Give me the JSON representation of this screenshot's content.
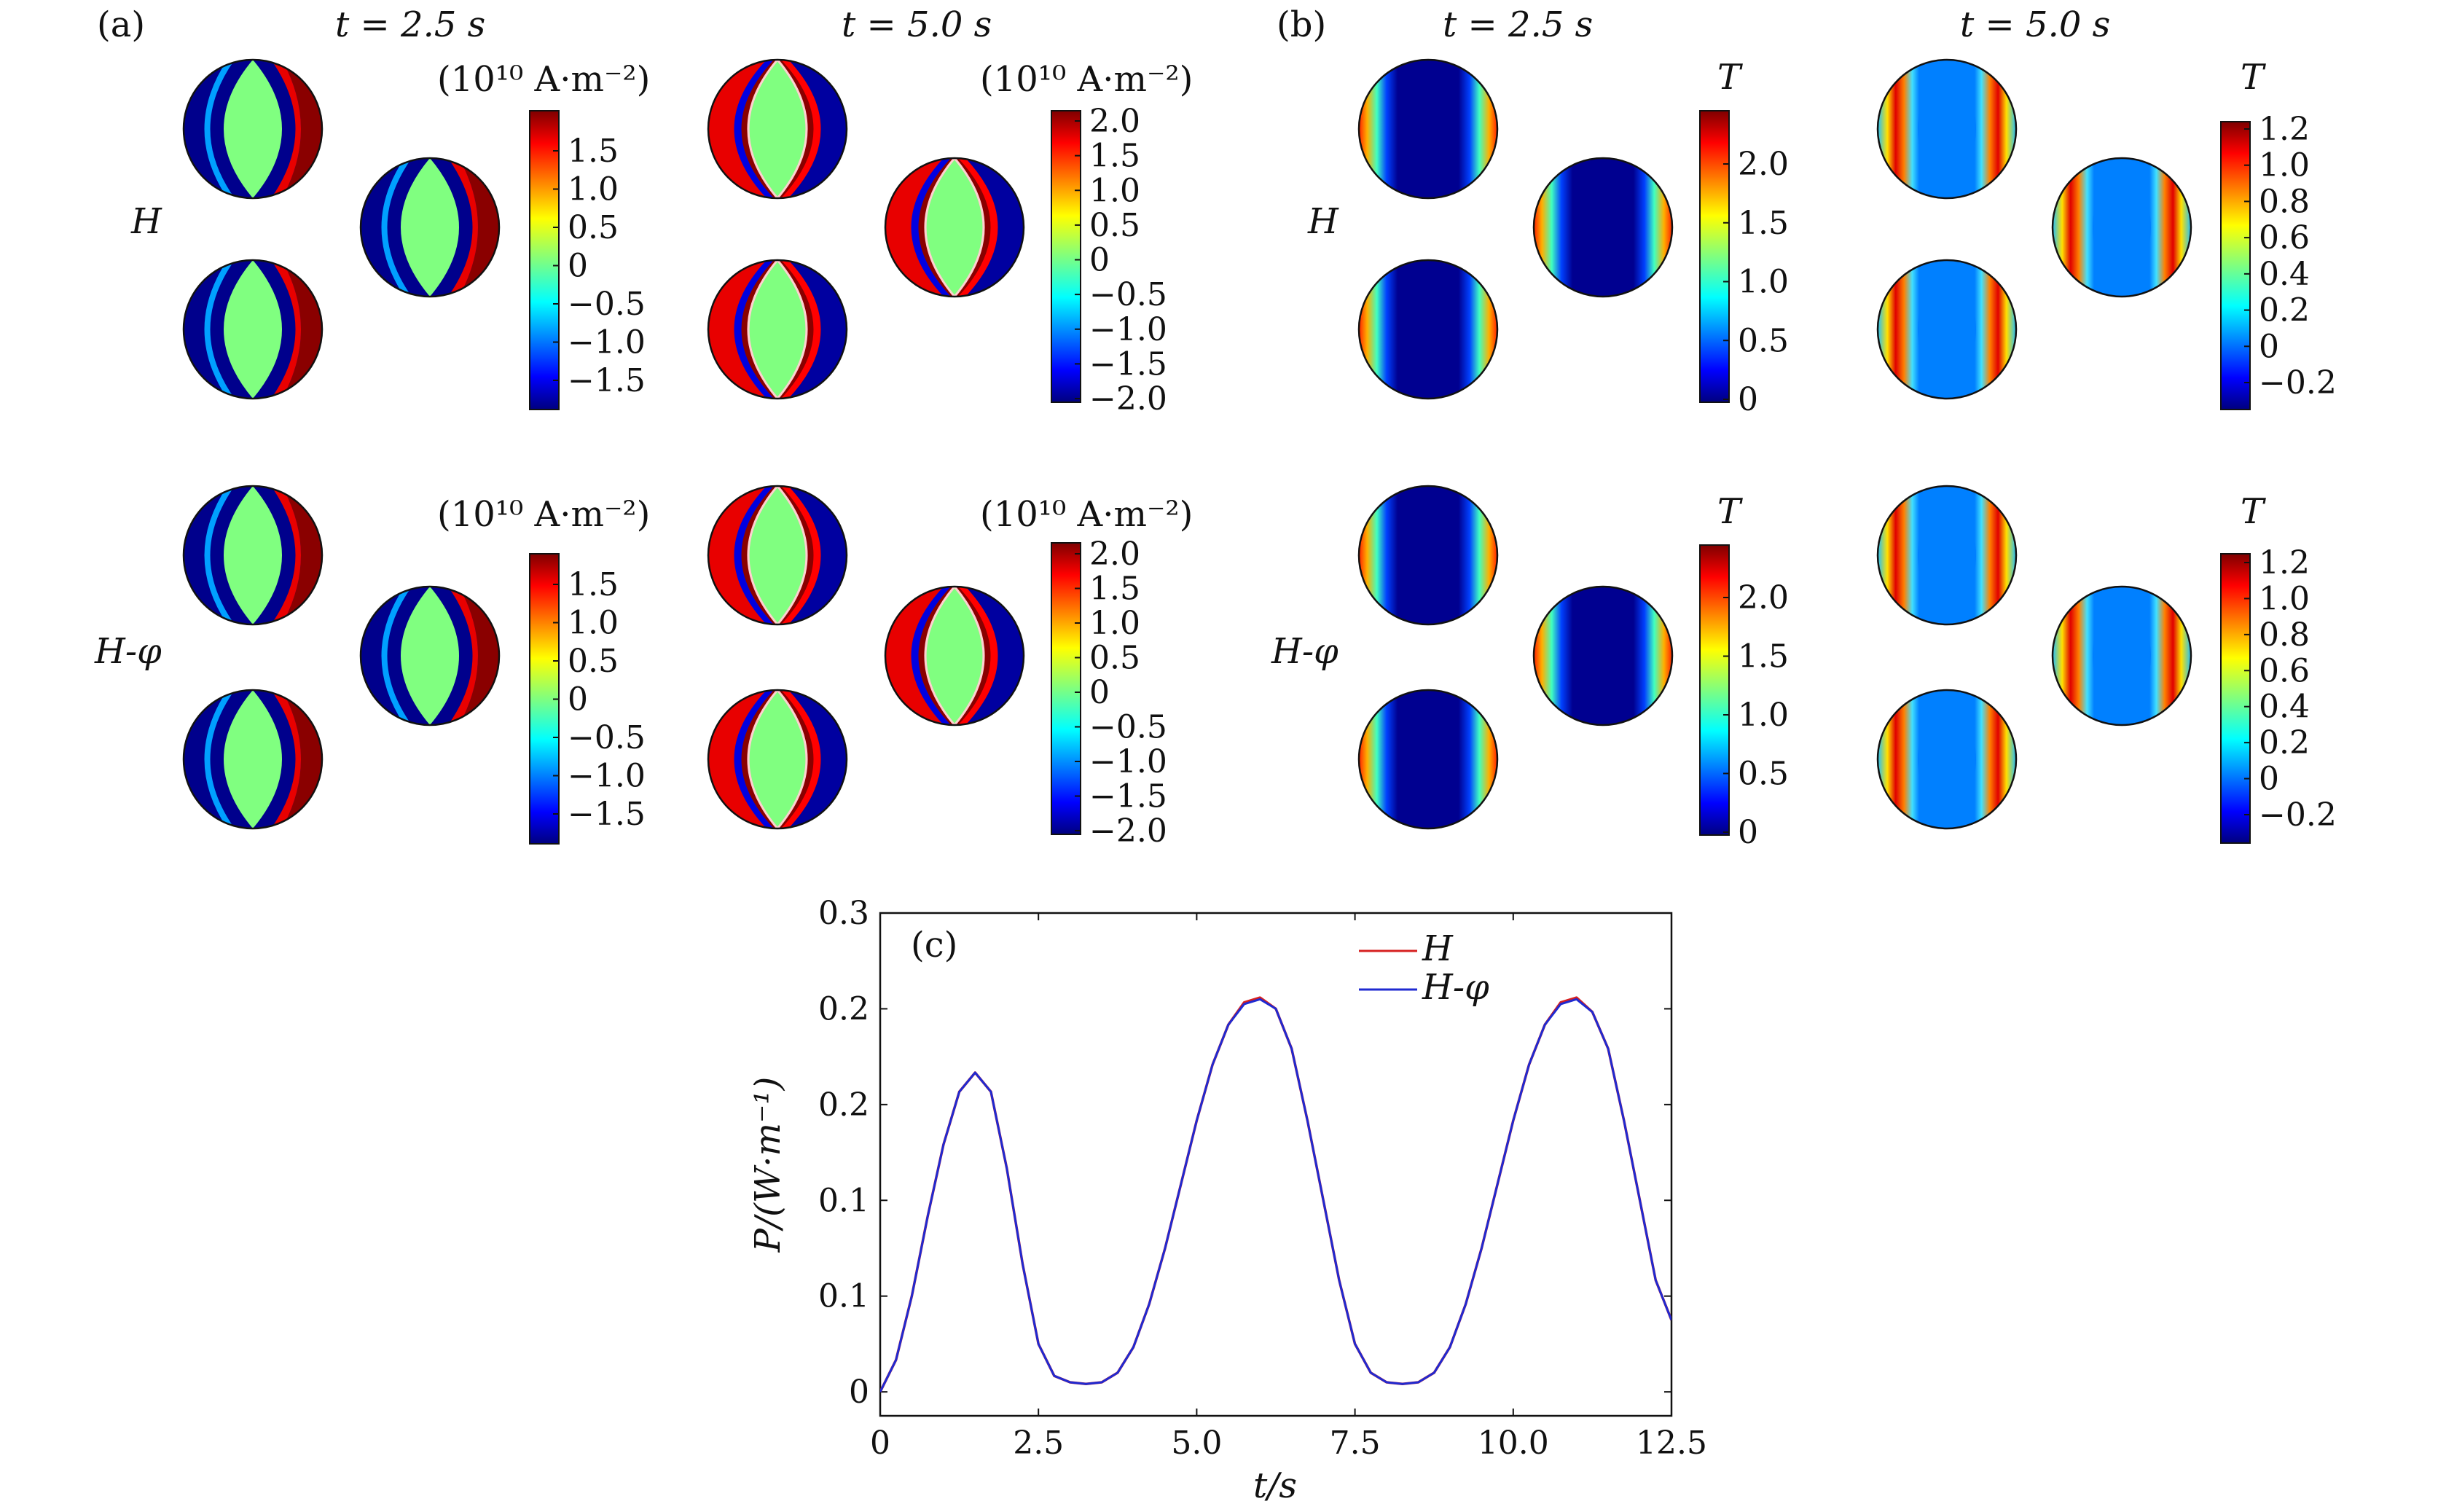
{
  "panels": {
    "a": {
      "label": "(a)",
      "times": [
        "t = 2.5 s",
        "t = 5.0 s"
      ],
      "rows": [
        "H",
        "H-φ"
      ],
      "unit": "(10¹⁰ A·m⁻²)",
      "cbar_2_5": [
        "1.5",
        "1.0",
        "0.5",
        "0",
        "−0.5",
        "−1.0",
        "−1.5"
      ],
      "cbar_5_0": [
        "2.0",
        "1.5",
        "1.0",
        "0.5",
        "0",
        "−0.5",
        "−1.0",
        "−1.5",
        "−2.0"
      ]
    },
    "b": {
      "label": "(b)",
      "times": [
        "t = 2.5 s",
        "t = 5.0 s"
      ],
      "rows": [
        "H",
        "H-φ"
      ],
      "unit": "T",
      "cbar_2_5": [
        "2.0",
        "1.5",
        "1.0",
        "0.5",
        "0"
      ],
      "cbar_5_0": [
        "1.2",
        "1.0",
        "0.8",
        "0.6",
        "0.4",
        "0.2",
        "0",
        "−0.2"
      ]
    }
  },
  "chart_data": {
    "type": "line",
    "panel_label": "(c)",
    "title": "",
    "xlabel": "t/s",
    "ylabel": "P/(W·m⁻¹)",
    "xlim": [
      0,
      12.5
    ],
    "ylim": [
      -0.015,
      0.3
    ],
    "xticks": [
      "0",
      "2.5",
      "5.0",
      "7.5",
      "10.0",
      "12.5"
    ],
    "yticks": [
      "0",
      "0.1",
      "0.1",
      "0.2",
      "0.2",
      "0.3"
    ],
    "x": [
      0,
      0.25,
      0.5,
      0.75,
      1.0,
      1.25,
      1.5,
      1.75,
      2.0,
      2.25,
      2.5,
      2.75,
      3.0,
      3.25,
      3.5,
      3.75,
      4.0,
      4.25,
      4.5,
      4.75,
      5.0,
      5.25,
      5.5,
      5.75,
      6.0,
      6.25,
      6.5,
      6.75,
      7.0,
      7.25,
      7.5,
      7.75,
      8.0,
      8.25,
      8.5,
      8.75,
      9.0,
      9.25,
      9.5,
      9.75,
      10.0,
      10.25,
      10.5,
      10.75,
      11.0,
      11.25,
      11.5,
      11.75,
      12.0,
      12.25,
      12.5
    ],
    "series": [
      {
        "name": "H",
        "color": "#d62020",
        "values": [
          0.0,
          0.02,
          0.06,
          0.11,
          0.155,
          0.188,
          0.2,
          0.188,
          0.14,
          0.08,
          0.03,
          0.01,
          0.006,
          0.005,
          0.006,
          0.012,
          0.028,
          0.055,
          0.09,
          0.13,
          0.17,
          0.205,
          0.23,
          0.244,
          0.247,
          0.24,
          0.215,
          0.17,
          0.12,
          0.07,
          0.03,
          0.012,
          0.006,
          0.005,
          0.006,
          0.012,
          0.028,
          0.055,
          0.09,
          0.13,
          0.17,
          0.205,
          0.23,
          0.244,
          0.247,
          0.238,
          0.215,
          0.17,
          0.12,
          0.07,
          0.045
        ]
      },
      {
        "name": "H-φ",
        "color": "#1f2ad1",
        "values": [
          0.0,
          0.02,
          0.06,
          0.11,
          0.155,
          0.188,
          0.2,
          0.188,
          0.14,
          0.08,
          0.03,
          0.01,
          0.006,
          0.005,
          0.006,
          0.012,
          0.028,
          0.055,
          0.09,
          0.13,
          0.17,
          0.205,
          0.23,
          0.243,
          0.246,
          0.24,
          0.215,
          0.17,
          0.12,
          0.07,
          0.03,
          0.012,
          0.006,
          0.005,
          0.006,
          0.012,
          0.028,
          0.055,
          0.09,
          0.13,
          0.17,
          0.205,
          0.23,
          0.243,
          0.246,
          0.238,
          0.215,
          0.17,
          0.12,
          0.07,
          0.045
        ]
      }
    ],
    "legend": [
      "H",
      "H-φ"
    ],
    "legend_position": "top-right"
  }
}
